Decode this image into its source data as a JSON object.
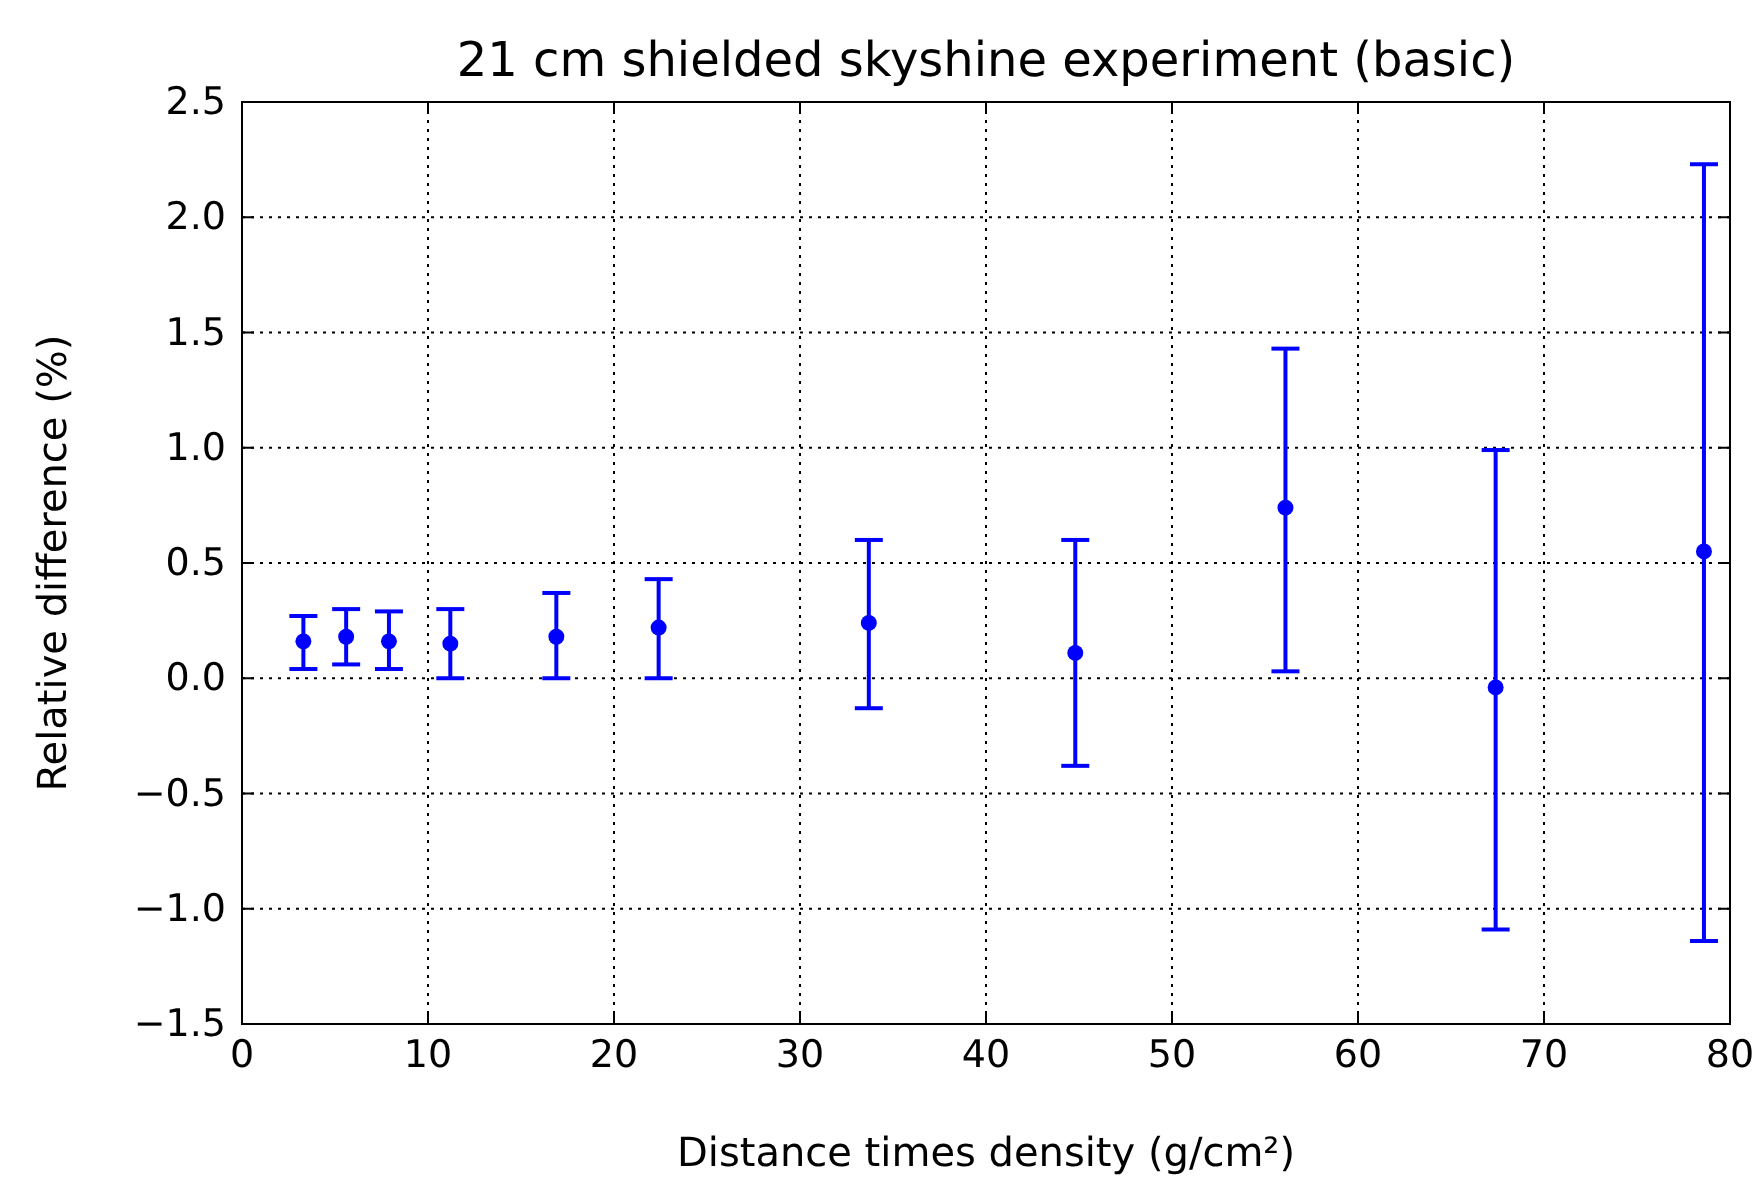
{
  "chart_data": {
    "type": "scatter",
    "title": "21 cm shielded skyshine experiment (basic)",
    "xlabel": "Distance times density (g/cm²)",
    "ylabel": "Relative difference (%)",
    "x": [
      3.3,
      5.6,
      7.9,
      11.2,
      16.9,
      22.4,
      33.7,
      44.8,
      56.1,
      67.4,
      78.6
    ],
    "series": [
      {
        "color": "#0000ff",
        "values": [
          0.16,
          0.18,
          0.16,
          0.15,
          0.18,
          0.22,
          0.24,
          0.11,
          0.74,
          -0.04,
          0.55
        ],
        "errors": [
          [
            0.04,
            0.27
          ],
          [
            0.06,
            0.3
          ],
          [
            0.04,
            0.29
          ],
          [
            0,
            0.3
          ],
          [
            0,
            0.37
          ],
          [
            0,
            0.43
          ],
          [
            -0.13,
            0.6
          ],
          [
            -0.38,
            0.6
          ],
          [
            0.03,
            1.43
          ],
          [
            -1.09,
            0.99
          ],
          [
            -1.14,
            2.23
          ]
        ]
      }
    ],
    "xlim": [
      0,
      80
    ],
    "xticks": [
      0,
      10,
      20,
      30,
      40,
      50,
      60,
      70,
      80
    ],
    "ylim": [
      -1.5,
      2.5
    ],
    "yticks": [
      {
        "value": -1.5,
        "label": "−1.5"
      },
      {
        "value": -1,
        "label": "−1.0"
      },
      {
        "value": -0.5,
        "label": "−0.5"
      },
      {
        "value": 0,
        "label": "0.0"
      },
      {
        "value": 0.5,
        "label": "0.5"
      },
      {
        "value": 1,
        "label": "1.0"
      },
      {
        "value": 1.5,
        "label": "1.5"
      },
      {
        "value": 2,
        "label": "2.0"
      },
      {
        "value": 2.5,
        "label": "2.5"
      }
    ],
    "grid": true,
    "marker": "circle"
  }
}
